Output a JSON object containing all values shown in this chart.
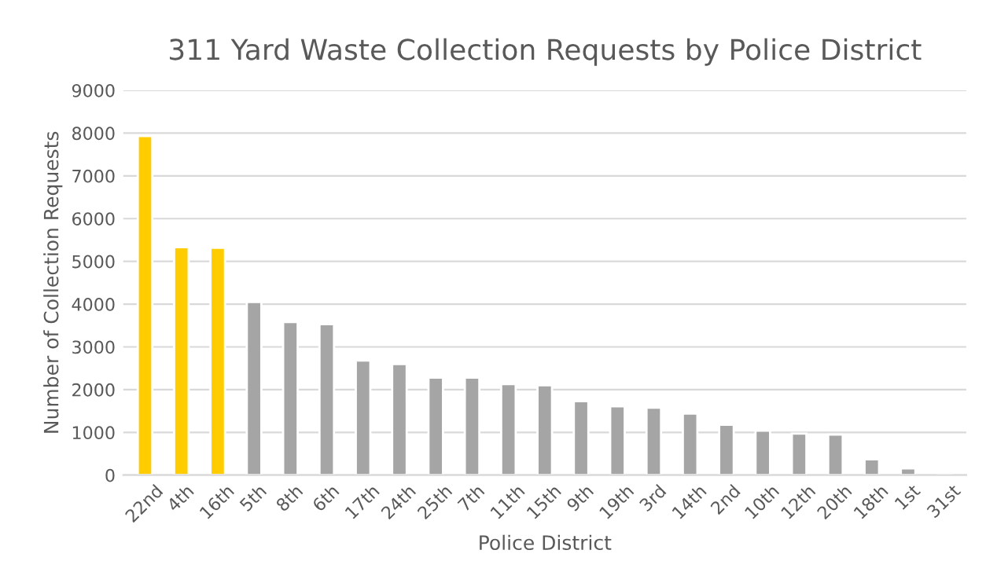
{
  "chart_data": {
    "type": "bar",
    "title": "311 Yard Waste Collection Requests by Police District",
    "xlabel": "Police District",
    "ylabel": "Number of Collection Requests",
    "categories": [
      "22nd",
      "4th",
      "16th",
      "5th",
      "8th",
      "6th",
      "17th",
      "24th",
      "25th",
      "7th",
      "11th",
      "15th",
      "9th",
      "19th",
      "3rd",
      "14th",
      "2nd",
      "10th",
      "12th",
      "20th",
      "18th",
      "1st",
      "31st"
    ],
    "values": [
      7930,
      5330,
      5320,
      4050,
      3580,
      3530,
      2680,
      2600,
      2280,
      2280,
      2130,
      2100,
      1730,
      1610,
      1580,
      1440,
      1180,
      1040,
      970,
      950,
      370,
      160,
      20
    ],
    "colors": [
      "#ffcc00",
      "#ffcc00",
      "#ffcc00",
      "#a5a5a5",
      "#a5a5a5",
      "#a5a5a5",
      "#a5a5a5",
      "#a5a5a5",
      "#a5a5a5",
      "#a5a5a5",
      "#a5a5a5",
      "#a5a5a5",
      "#a5a5a5",
      "#a5a5a5",
      "#a5a5a5",
      "#a5a5a5",
      "#a5a5a5",
      "#a5a5a5",
      "#a5a5a5",
      "#a5a5a5",
      "#a5a5a5",
      "#a5a5a5",
      "#9dc3e6"
    ],
    "ylim": [
      0,
      9000
    ],
    "yticks": [
      0,
      1000,
      2000,
      3000,
      4000,
      5000,
      6000,
      7000,
      8000,
      9000
    ],
    "grid": "y"
  }
}
